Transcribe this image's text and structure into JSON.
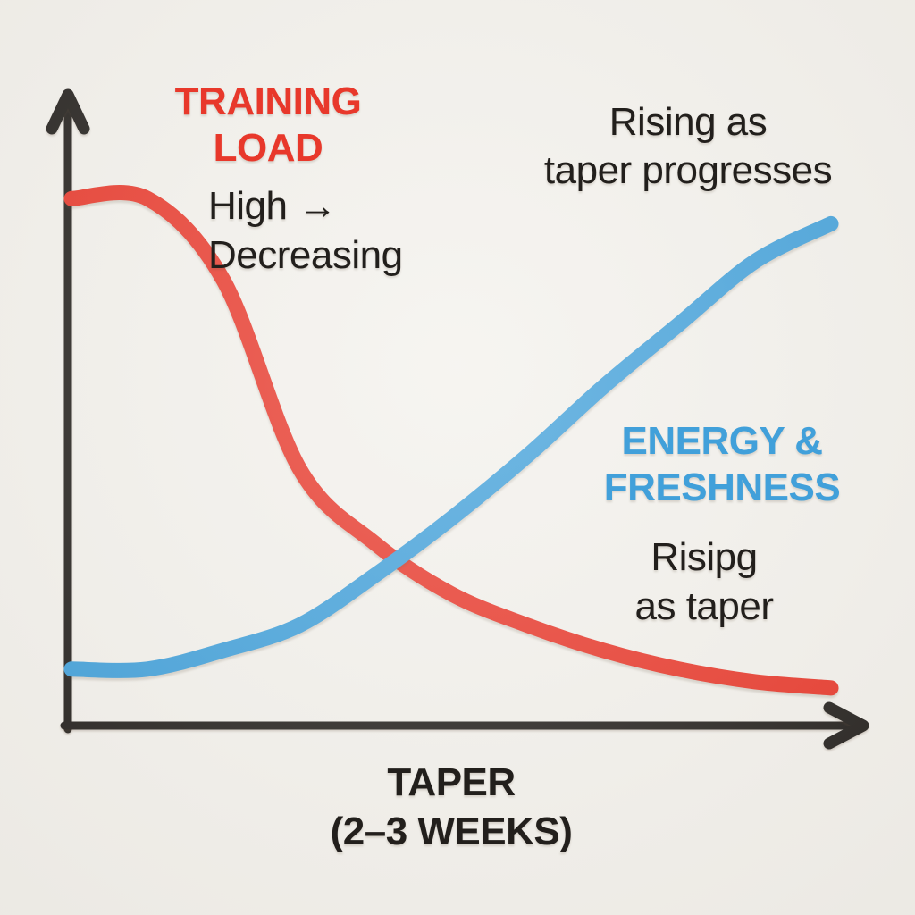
{
  "canvas": {
    "background_color": "#f3f1ec",
    "ink_color": "#221f1c"
  },
  "labels": {
    "training_title": "TRAINING\nLOAD",
    "training_note": "High →\nDecreasing",
    "rising_note": "Rising as\ntaper progresses",
    "energy_title": "ENERGY &\nFRESHNESS",
    "energy_note": "Risipg\nas taper",
    "x_axis": "TAPER\n(2–3 WEEKS)"
  },
  "colors": {
    "training_load": "#e8382b",
    "energy_freshness": "#41a0da",
    "axis": "#221f1c"
  },
  "chart_data": {
    "type": "line",
    "title": "",
    "xlabel": "TAPER (2–3 WEEKS)",
    "ylabel": "",
    "x_percent_of_taper": [
      0,
      10,
      20,
      30,
      40,
      50,
      60,
      70,
      80,
      90,
      100
    ],
    "ylim": [
      0,
      1
    ],
    "grid": false,
    "legend_position": "inline-annotations",
    "series": [
      {
        "name": "TRAINING LOAD",
        "color": "#e8382b",
        "annotation": "High → Decreasing",
        "values": [
          0.84,
          0.84,
          0.71,
          0.41,
          0.29,
          0.21,
          0.16,
          0.12,
          0.09,
          0.07,
          0.06
        ]
      },
      {
        "name": "ENERGY & FRESHNESS",
        "color": "#41a0da",
        "annotation": "Rising as taper progresses",
        "values": [
          0.09,
          0.09,
          0.12,
          0.16,
          0.24,
          0.33,
          0.43,
          0.54,
          0.64,
          0.74,
          0.8
        ]
      }
    ]
  }
}
